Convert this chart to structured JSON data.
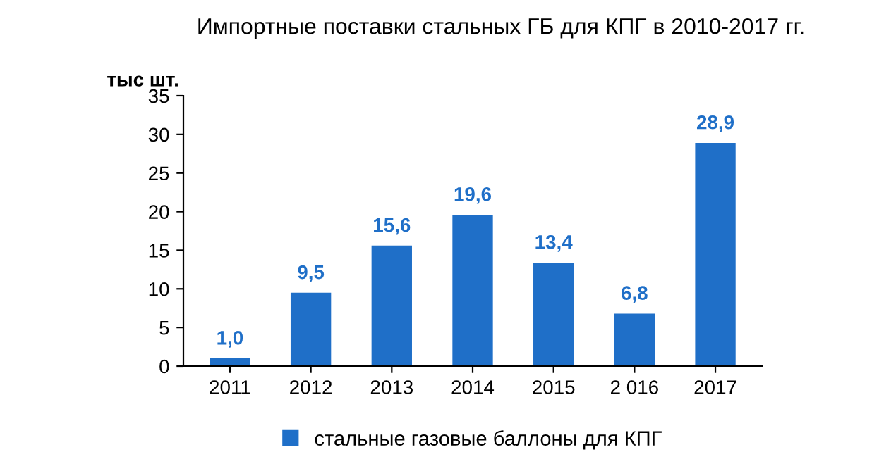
{
  "chart_data": {
    "type": "bar",
    "title": "Импортные поставки стальных ГБ для КПГ в 2010-2017 гг.",
    "ylabel": "тыс шт.",
    "categories": [
      "2011",
      "2012",
      "2013",
      "2014",
      "2015",
      "2 016",
      "2017"
    ],
    "series": [
      {
        "name": "стальные газовые баллоны для КПГ",
        "color": "#1f6fc8",
        "values": [
          1.0,
          9.5,
          15.6,
          19.6,
          13.4,
          6.8,
          28.9
        ],
        "value_labels": [
          "1,0",
          "9,5",
          "15,6",
          "19,6",
          "13,4",
          "6,8",
          "28,9"
        ]
      }
    ],
    "ylim": [
      0,
      35
    ],
    "yticks": [
      0,
      5,
      10,
      15,
      20,
      25,
      30,
      35
    ],
    "grid": false,
    "legend": "bottom"
  }
}
